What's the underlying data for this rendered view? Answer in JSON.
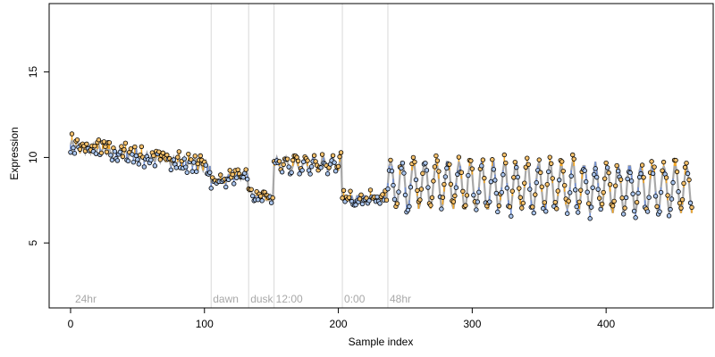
{
  "chart_data": {
    "type": "scatter",
    "xlabel": "Sample index",
    "ylabel": "Expression",
    "xlim": [
      -16,
      480
    ],
    "ylim": [
      1.2,
      19
    ],
    "xticks": [
      0,
      100,
      200,
      300,
      400
    ],
    "yticks": [
      5,
      10,
      15
    ],
    "grid": false,
    "colors": {
      "fit_line": "#a8a8a8",
      "residual_above": "#f5a623",
      "residual_below": "#6f8fd6",
      "point_fill_above": "#f5c16c",
      "point_fill_below": "#a9c4ec",
      "point_stroke": "#000000",
      "phase_line": "#d8d8d8",
      "phase_label": "#a8a8a8"
    },
    "phase_markers": [
      {
        "x": 2,
        "label": "24hr",
        "line": false
      },
      {
        "x": 105,
        "label": "dawn",
        "line": true
      },
      {
        "x": 133,
        "label": "dusk",
        "line": true
      },
      {
        "x": 152,
        "label": "12:00",
        "line": true
      },
      {
        "x": 203,
        "label": "0:00",
        "line": true
      },
      {
        "x": 237,
        "label": "48hr",
        "line": true
      }
    ],
    "segments": [
      {
        "start": 0,
        "end": 104,
        "mean": 10.1,
        "trend": -1.2,
        "amp": 0.25,
        "period": 4,
        "noise": 0.45
      },
      {
        "start": 105,
        "end": 132,
        "mean": 8.8,
        "trend": 0.6,
        "amp": 0.15,
        "period": 6,
        "noise": 0.3
      },
      {
        "start": 133,
        "end": 151,
        "mean": 7.7,
        "trend": -0.4,
        "amp": 0.1,
        "period": 5,
        "noise": 0.3
      },
      {
        "start": 152,
        "end": 202,
        "mean": 9.6,
        "trend": 0.1,
        "amp": 0.35,
        "period": 7,
        "noise": 0.35
      },
      {
        "start": 203,
        "end": 236,
        "mean": 7.6,
        "trend": 0.0,
        "amp": 0.2,
        "period": 5,
        "noise": 0.35
      },
      {
        "start": 237,
        "end": 464,
        "mean": 8.3,
        "trend": -0.3,
        "amp": 1.4,
        "period": 8.5,
        "noise": 0.45
      }
    ]
  }
}
